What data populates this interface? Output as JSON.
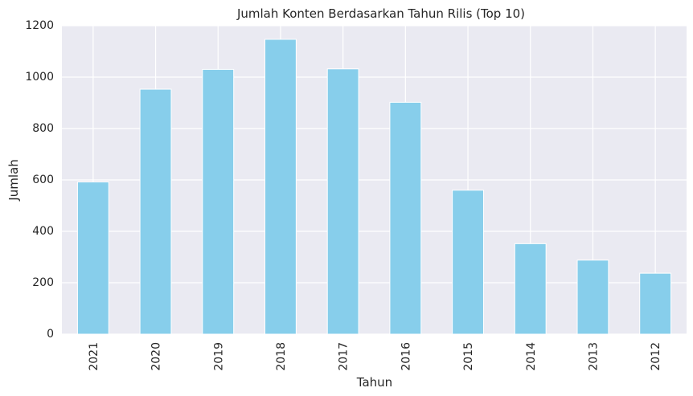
{
  "chart_data": {
    "type": "bar",
    "title": "Jumlah Konten Berdasarkan Tahun Rilis (Top 10)",
    "xlabel": "Tahun",
    "ylabel": "Jumlah",
    "categories": [
      "2021",
      "2020",
      "2019",
      "2018",
      "2017",
      "2016",
      "2015",
      "2014",
      "2013",
      "2012"
    ],
    "values": [
      592,
      953,
      1030,
      1147,
      1032,
      902,
      560,
      352,
      288,
      237
    ],
    "ylim": [
      0,
      1200
    ],
    "yticks": [
      0,
      200,
      400,
      600,
      800,
      1000,
      1200
    ],
    "grid": true,
    "legend": "none",
    "colors": {
      "bar": "#87CEEB",
      "plot_background": "#EAEAF2",
      "grid": "#FFFFFF",
      "text": "#262626"
    }
  }
}
